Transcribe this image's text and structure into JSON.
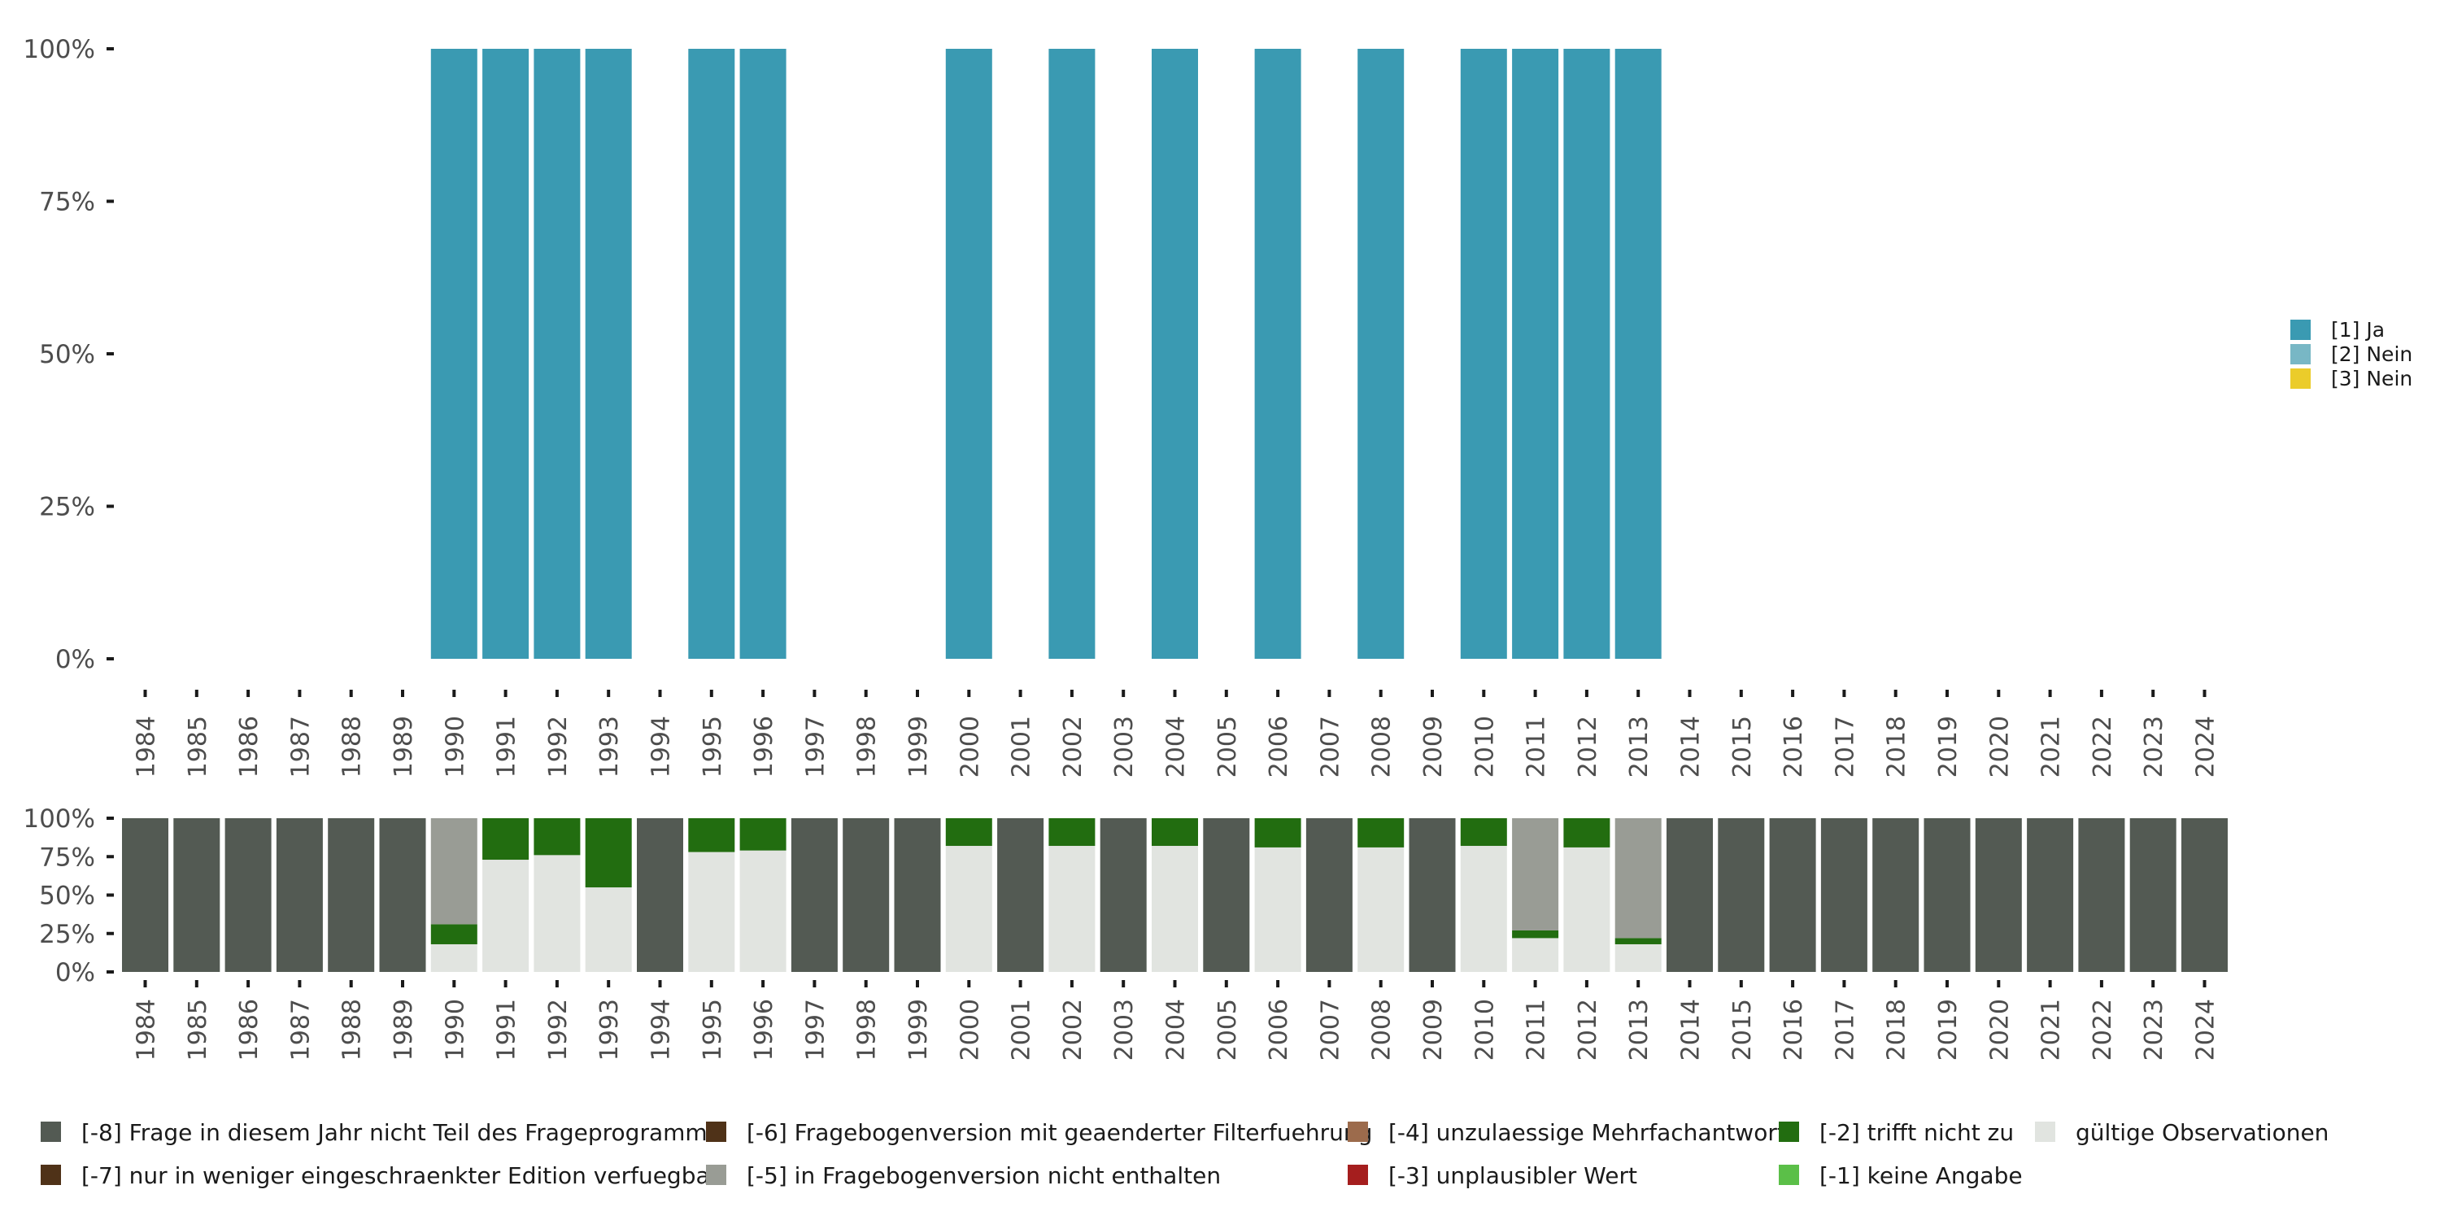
{
  "chart_data": [
    {
      "type": "bar",
      "stacked": true,
      "title": "",
      "xlabel": "",
      "ylabel": "",
      "ylim": [
        0,
        100
      ],
      "y_ticks": [
        "0%",
        "25%",
        "50%",
        "75%",
        "100%"
      ],
      "categories": [
        "1984",
        "1985",
        "1986",
        "1987",
        "1988",
        "1989",
        "1990",
        "1991",
        "1992",
        "1993",
        "1994",
        "1995",
        "1996",
        "1997",
        "1998",
        "1999",
        "2000",
        "2001",
        "2002",
        "2003",
        "2004",
        "2005",
        "2006",
        "2007",
        "2008",
        "2009",
        "2010",
        "2011",
        "2012",
        "2013",
        "2014",
        "2015",
        "2016",
        "2017",
        "2018",
        "2019",
        "2020",
        "2021",
        "2022",
        "2023",
        "2024"
      ],
      "series": [
        {
          "name": "[1] Ja",
          "color": "#3a9ab2",
          "values": [
            0,
            0,
            0,
            0,
            0,
            0,
            100,
            100,
            100,
            100,
            0,
            100,
            100,
            0,
            0,
            0,
            100,
            0,
            100,
            0,
            100,
            0,
            100,
            0,
            100,
            0,
            100,
            100,
            100,
            100,
            0,
            0,
            0,
            0,
            0,
            0,
            0,
            0,
            0,
            0,
            0
          ]
        },
        {
          "name": "[2] Nein",
          "color": "#78b7c5",
          "values": [
            0,
            0,
            0,
            0,
            0,
            0,
            0,
            0,
            0,
            0,
            0,
            0,
            0,
            0,
            0,
            0,
            0,
            0,
            0,
            0,
            0,
            0,
            0,
            0,
            0,
            0,
            0,
            0,
            0,
            0,
            0,
            0,
            0,
            0,
            0,
            0,
            0,
            0,
            0,
            0,
            0
          ]
        },
        {
          "name": "[3] Nein",
          "color": "#ebcc2a",
          "values": [
            0,
            0,
            0,
            0,
            0,
            0,
            0,
            0,
            0,
            0,
            0,
            0,
            0,
            0,
            0,
            0,
            0,
            0,
            0,
            0,
            0,
            0,
            0,
            0,
            0,
            0,
            0,
            0,
            0,
            0,
            0,
            0,
            0,
            0,
            0,
            0,
            0,
            0,
            0,
            0,
            0
          ]
        }
      ],
      "legend": [
        "[1] Ja",
        "[2] Nein",
        "[3] Nein"
      ],
      "legend_position": "right"
    },
    {
      "type": "bar",
      "stacked": true,
      "title": "",
      "xlabel": "",
      "ylabel": "",
      "ylim": [
        0,
        100
      ],
      "y_ticks": [
        "0%",
        "25%",
        "50%",
        "75%",
        "100%"
      ],
      "categories": [
        "1984",
        "1985",
        "1986",
        "1987",
        "1988",
        "1989",
        "1990",
        "1991",
        "1992",
        "1993",
        "1994",
        "1995",
        "1996",
        "1997",
        "1998",
        "1999",
        "2000",
        "2001",
        "2002",
        "2003",
        "2004",
        "2005",
        "2006",
        "2007",
        "2008",
        "2009",
        "2010",
        "2011",
        "2012",
        "2013",
        "2014",
        "2015",
        "2016",
        "2017",
        "2018",
        "2019",
        "2020",
        "2021",
        "2022",
        "2023",
        "2024"
      ],
      "series": [
        {
          "name": "gültige Observationen",
          "color": "#e1e4e0",
          "values": [
            0,
            0,
            0,
            0,
            0,
            0,
            18,
            73,
            76,
            55,
            0,
            78,
            79,
            0,
            0,
            0,
            82,
            0,
            82,
            0,
            82,
            0,
            81,
            0,
            81,
            0,
            82,
            22,
            81,
            18,
            0,
            0,
            0,
            0,
            0,
            0,
            0,
            0,
            0,
            0,
            0
          ]
        },
        {
          "name": "[-1] keine Angabe",
          "color": "#5bbf48",
          "values": [
            0,
            0,
            0,
            0,
            0,
            0,
            0,
            0,
            0,
            0,
            0,
            0,
            0,
            0,
            0,
            0,
            0,
            0,
            0,
            0,
            0,
            0,
            0,
            0,
            0,
            0,
            0,
            0,
            0,
            0,
            0,
            0,
            0,
            0,
            0,
            0,
            0,
            0,
            0,
            0,
            0
          ]
        },
        {
          "name": "[-2] trifft nicht zu",
          "color": "#226d10",
          "values": [
            0,
            0,
            0,
            0,
            0,
            0,
            13,
            27,
            24,
            45,
            0,
            22,
            21,
            0,
            0,
            0,
            18,
            0,
            18,
            0,
            18,
            0,
            19,
            0,
            19,
            0,
            18,
            5,
            19,
            4,
            0,
            0,
            0,
            0,
            0,
            0,
            0,
            0,
            0,
            0,
            0
          ]
        },
        {
          "name": "[-3] unplausibler Wert",
          "color": "#a51e1e",
          "values": [
            0,
            0,
            0,
            0,
            0,
            0,
            0,
            0,
            0,
            0,
            0,
            0,
            0,
            0,
            0,
            0,
            0,
            0,
            0,
            0,
            0,
            0,
            0,
            0,
            0,
            0,
            0,
            0,
            0,
            0,
            0,
            0,
            0,
            0,
            0,
            0,
            0,
            0,
            0,
            0,
            0
          ]
        },
        {
          "name": "[-4] unzulaessige Mehrfachantwort",
          "color": "#9c6b4c",
          "values": [
            0,
            0,
            0,
            0,
            0,
            0,
            0,
            0,
            0,
            0,
            0,
            0,
            0,
            0,
            0,
            0,
            0,
            0,
            0,
            0,
            0,
            0,
            0,
            0,
            0,
            0,
            0,
            0,
            0,
            0,
            0,
            0,
            0,
            0,
            0,
            0,
            0,
            0,
            0,
            0,
            0
          ]
        },
        {
          "name": "[-5] in Fragebogenversion nicht enthalten",
          "color": "#999c95",
          "values": [
            0,
            0,
            0,
            0,
            0,
            0,
            69,
            0,
            0,
            0,
            0,
            0,
            0,
            0,
            0,
            0,
            0,
            0,
            0,
            0,
            0,
            0,
            0,
            0,
            0,
            0,
            0,
            73,
            0,
            78,
            0,
            0,
            0,
            0,
            0,
            0,
            0,
            0,
            0,
            0,
            0
          ]
        },
        {
          "name": "[-6] Fragebogenversion mit geaenderter Filterfuehrung",
          "color": "#4f3218",
          "values": [
            0,
            0,
            0,
            0,
            0,
            0,
            0,
            0,
            0,
            0,
            0,
            0,
            0,
            0,
            0,
            0,
            0,
            0,
            0,
            0,
            0,
            0,
            0,
            0,
            0,
            0,
            0,
            0,
            0,
            0,
            0,
            0,
            0,
            0,
            0,
            0,
            0,
            0,
            0,
            0,
            0
          ]
        },
        {
          "name": "[-7] nur in weniger eingeschraenkter Edition verfuegbar",
          "color": "#4f3218",
          "values": [
            0,
            0,
            0,
            0,
            0,
            0,
            0,
            0,
            0,
            0,
            0,
            0,
            0,
            0,
            0,
            0,
            0,
            0,
            0,
            0,
            0,
            0,
            0,
            0,
            0,
            0,
            0,
            0,
            0,
            0,
            0,
            0,
            0,
            0,
            0,
            0,
            0,
            0,
            0,
            0,
            0
          ]
        },
        {
          "name": "[-8] Frage in diesem Jahr nicht Teil des Frageprogramms",
          "color": "#535a53",
          "values": [
            100,
            100,
            100,
            100,
            100,
            100,
            0,
            0,
            0,
            0,
            100,
            0,
            0,
            100,
            100,
            100,
            0,
            100,
            0,
            100,
            0,
            100,
            0,
            100,
            0,
            100,
            0,
            0,
            0,
            0,
            100,
            100,
            100,
            100,
            100,
            100,
            100,
            100,
            100,
            100,
            100
          ]
        }
      ],
      "legend": [
        "[-8] Frage in diesem Jahr nicht Teil des Frageprogramms",
        "[-7] nur in weniger eingeschraenkter Edition verfuegbar",
        "[-6] Fragebogenversion mit geaenderter Filterfuehrung",
        "[-5] in Fragebogenversion nicht enthalten",
        "[-4] unzulaessige Mehrfachantwort",
        "[-3] unplausibler Wert",
        "[-2] trifft nicht zu",
        "[-1] keine Angabe",
        "gültige Observationen"
      ],
      "legend_position": "bottom"
    }
  ]
}
